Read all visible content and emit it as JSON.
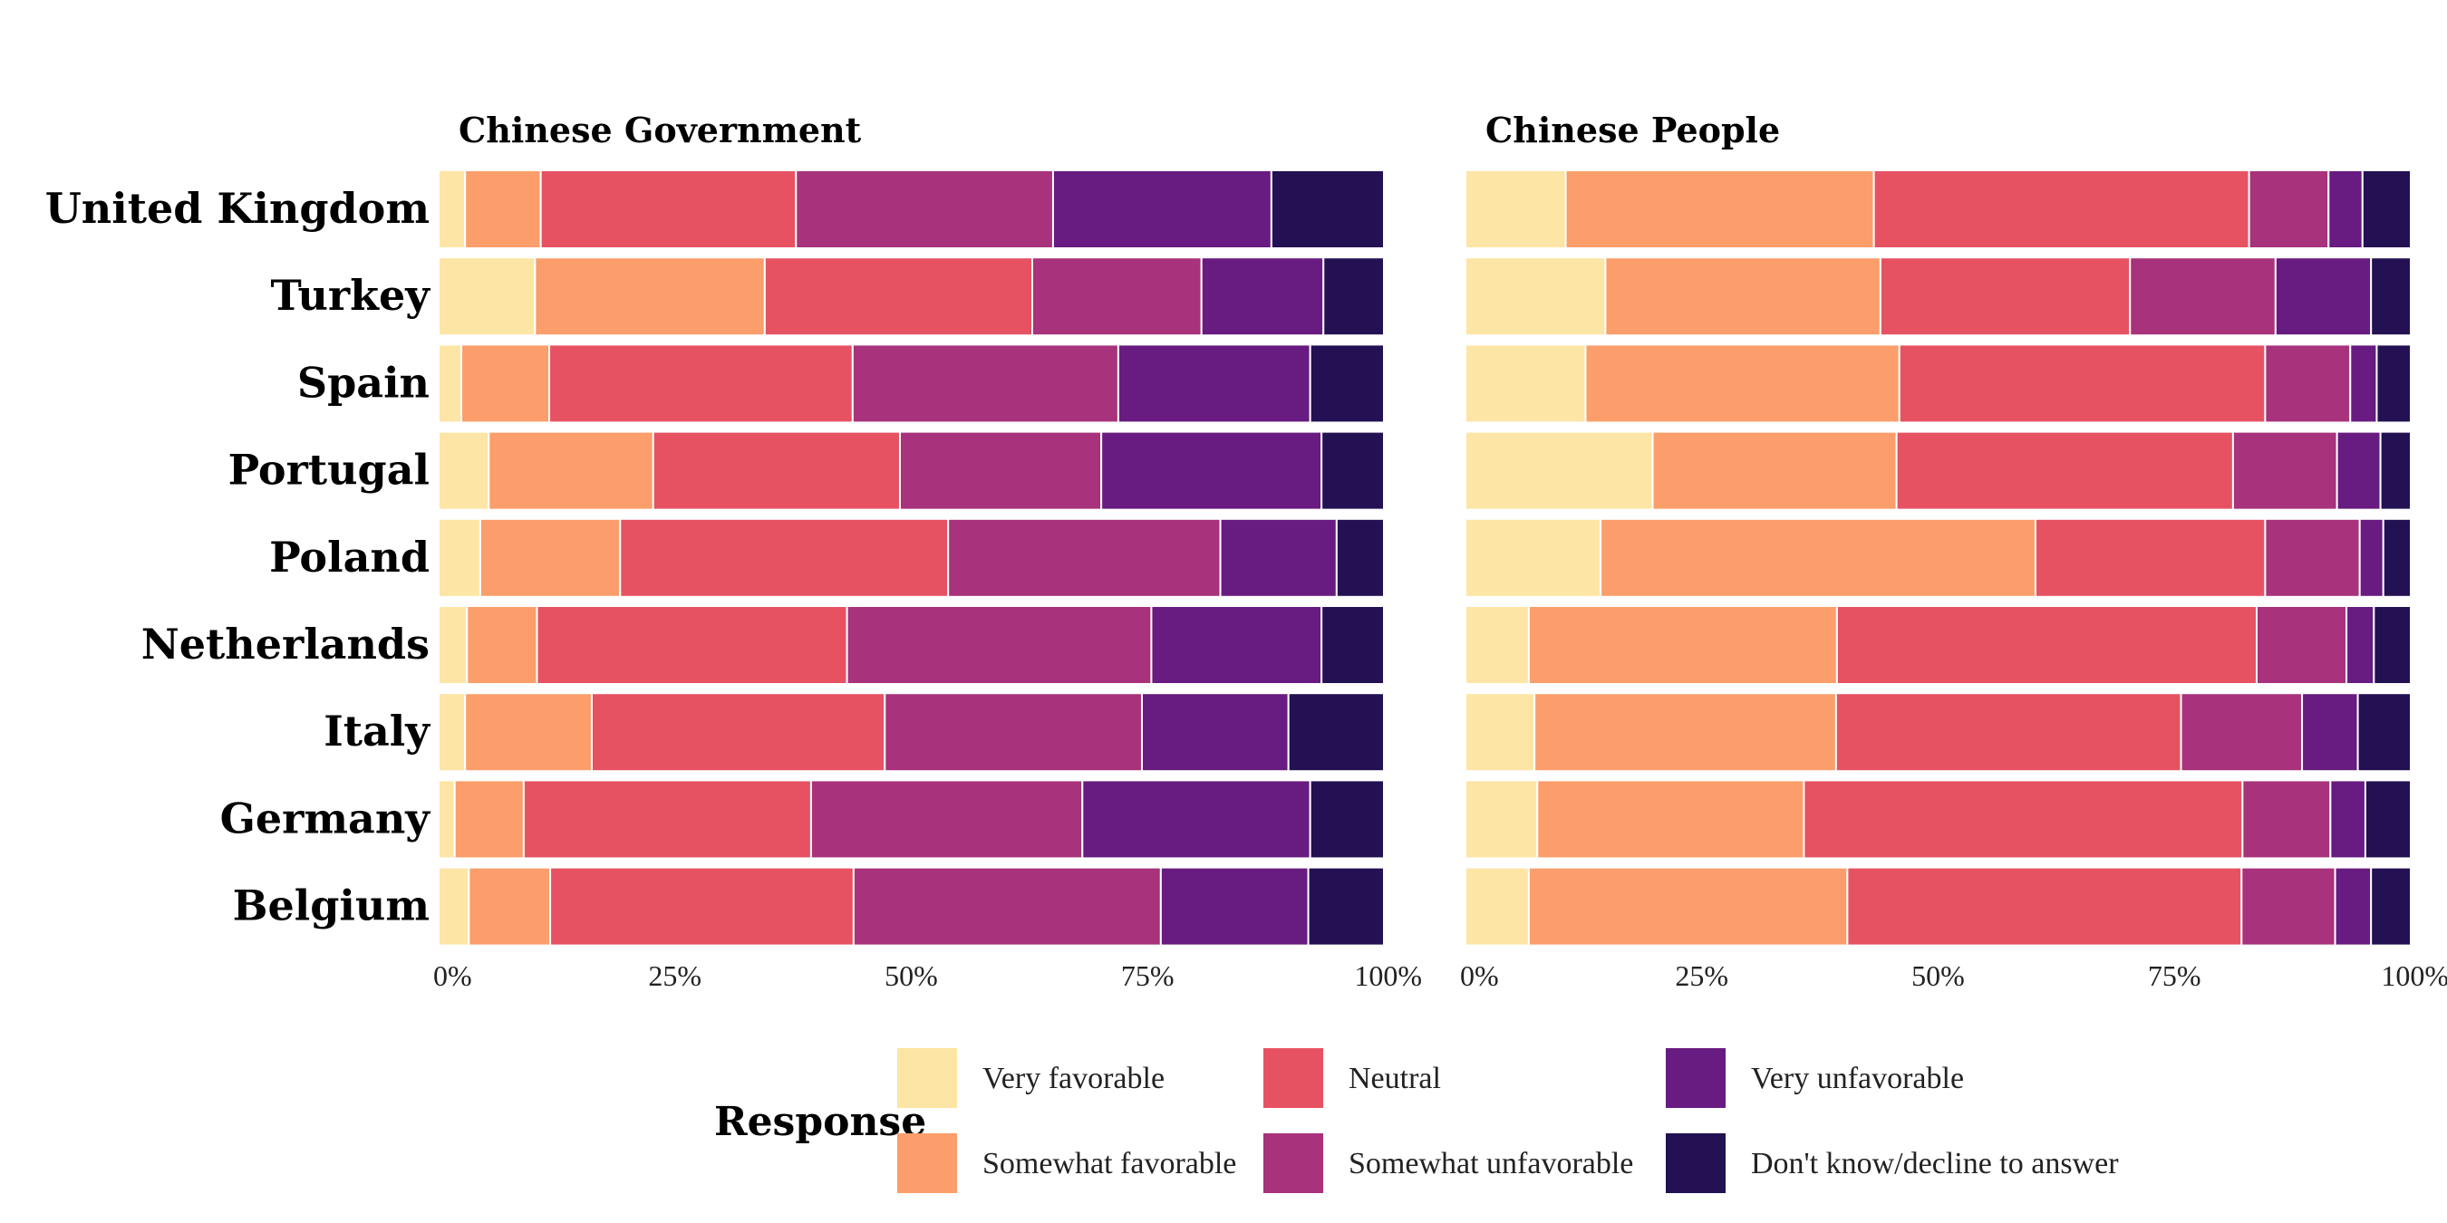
{
  "chart_data": {
    "type": "bar",
    "orientation": "horizontal",
    "stacked": "percent",
    "categories": [
      "United Kingdom",
      "Turkey",
      "Spain",
      "Portugal",
      "Poland",
      "Netherlands",
      "Italy",
      "Germany",
      "Belgium"
    ],
    "xticks": [
      "0%",
      "25%",
      "50%",
      "75%",
      "100%"
    ],
    "xlim": [
      0,
      100
    ],
    "grid": false,
    "legend": {
      "title": "Response",
      "position": "bottom",
      "entries": [
        {
          "label": "Very favorable",
          "color": "#fde5a5"
        },
        {
          "label": "Somewhat favorable",
          "color": "#fb9e6b"
        },
        {
          "label": "Neutral",
          "color": "#e75263"
        },
        {
          "label": "Somewhat unfavorable",
          "color": "#a8327c"
        },
        {
          "label": "Very unfavorable",
          "color": "#681b80"
        },
        {
          "label": "Don't know/decline to answer",
          "color": "#231153"
        }
      ]
    },
    "panels": [
      {
        "title": "Chinese Government",
        "series": [
          {
            "name": "Very favorable",
            "values": [
              2.8,
              10.2,
              2.4,
              5.3,
              4.4,
              3.0,
              2.8,
              1.7,
              3.2
            ]
          },
          {
            "name": "Somewhat favorable",
            "values": [
              8.0,
              24.3,
              9.3,
              17.4,
              14.8,
              7.4,
              13.4,
              7.3,
              8.6
            ]
          },
          {
            "name": "Neutral",
            "values": [
              27.0,
              28.3,
              32.1,
              26.1,
              34.7,
              32.8,
              31.0,
              30.4,
              32.1
            ]
          },
          {
            "name": "Somewhat unfavorable",
            "values": [
              27.2,
              17.9,
              28.1,
              21.3,
              28.8,
              32.2,
              27.2,
              28.7,
              32.5
            ]
          },
          {
            "name": "Very unfavorable",
            "values": [
              23.1,
              12.9,
              20.3,
              23.3,
              12.3,
              18.0,
              15.5,
              24.1,
              15.6
            ]
          },
          {
            "name": "Don't know/decline to answer",
            "values": [
              11.9,
              6.4,
              7.8,
              6.6,
              5.0,
              6.6,
              10.1,
              7.8,
              8.0
            ]
          }
        ]
      },
      {
        "title": "Chinese People",
        "series": [
          {
            "name": "Very favorable",
            "values": [
              10.6,
              14.8,
              12.7,
              19.8,
              14.3,
              6.7,
              7.3,
              7.6,
              6.7
            ]
          },
          {
            "name": "Somewhat favorable",
            "values": [
              32.6,
              29.1,
              33.2,
              25.8,
              46.0,
              32.6,
              31.9,
              28.2,
              33.7
            ]
          },
          {
            "name": "Neutral",
            "values": [
              39.7,
              26.4,
              38.7,
              35.6,
              24.3,
              44.4,
              36.5,
              46.4,
              41.7
            ]
          },
          {
            "name": "Somewhat unfavorable",
            "values": [
              8.4,
              15.4,
              9.0,
              11.0,
              10.0,
              9.5,
              12.8,
              9.3,
              9.9
            ]
          },
          {
            "name": "Very unfavorable",
            "values": [
              3.6,
              10.1,
              2.8,
              4.6,
              2.5,
              2.9,
              5.9,
              3.7,
              3.8
            ]
          },
          {
            "name": "Don't know/decline to answer",
            "values": [
              5.1,
              4.2,
              3.6,
              3.2,
              2.9,
              3.9,
              5.6,
              4.8,
              4.2
            ]
          }
        ]
      }
    ]
  }
}
